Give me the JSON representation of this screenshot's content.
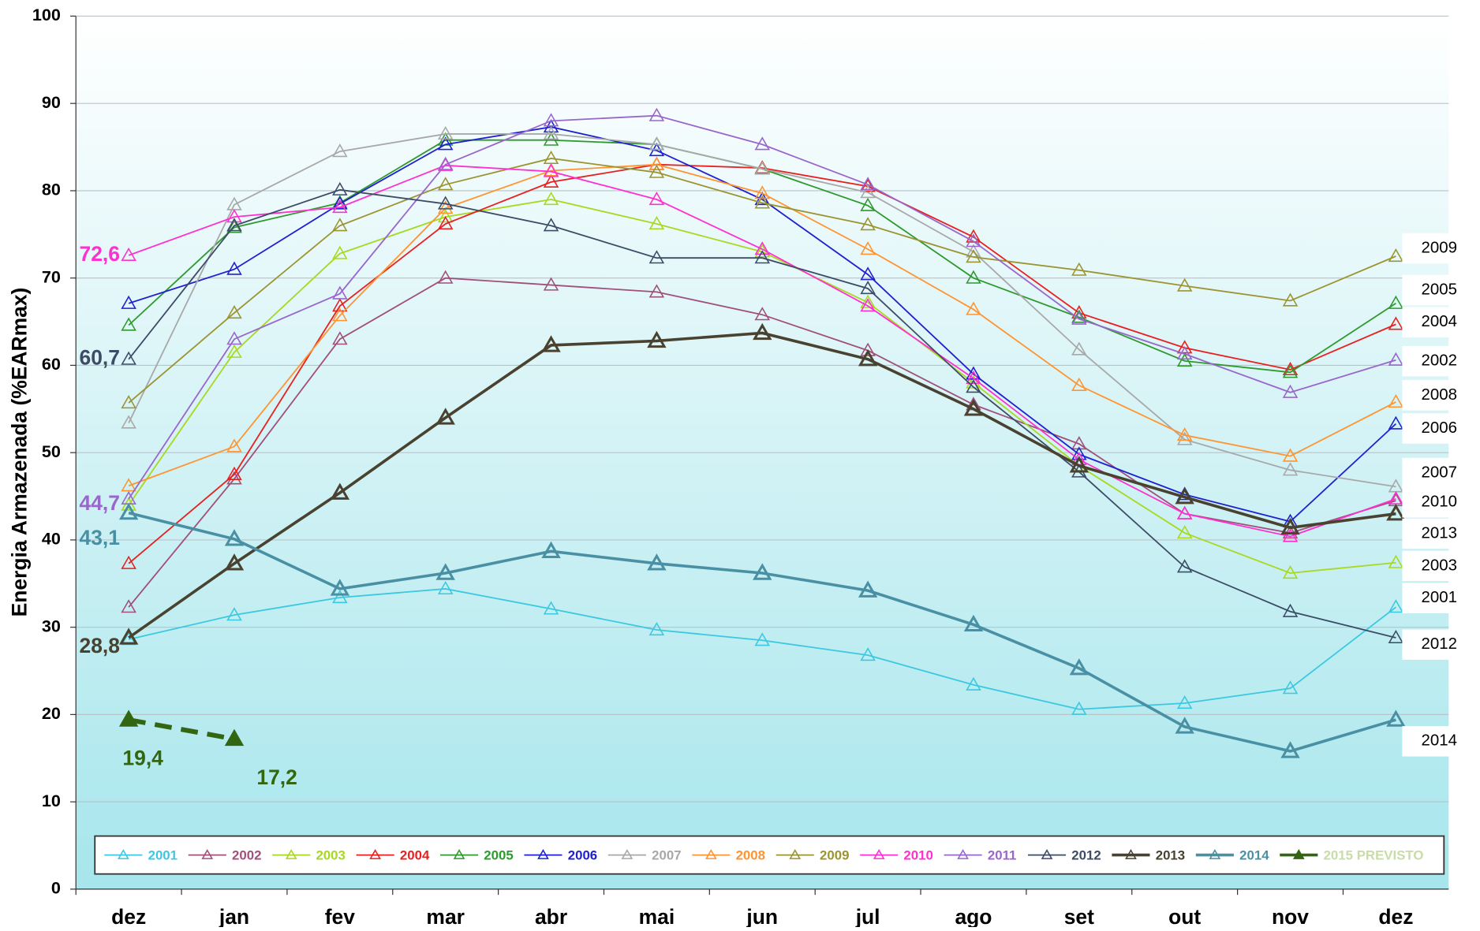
{
  "chart_data": {
    "type": "line",
    "y_label": "Energia Armazenada (%EARmax)",
    "categories": [
      "dez",
      "jan",
      "fev",
      "mar",
      "abr",
      "mai",
      "jun",
      "jul",
      "ago",
      "set",
      "out",
      "nov",
      "dez"
    ],
    "ylim": [
      0,
      100
    ],
    "yticks": [
      0,
      10,
      20,
      30,
      40,
      50,
      60,
      70,
      80,
      90,
      100
    ],
    "grid": true,
    "legend": "bottom",
    "series": [
      {
        "name": "2001",
        "color": "#3cc8e0",
        "values": [
          28.6,
          31.4,
          33.4,
          34.4,
          32.1,
          29.7,
          28.5,
          26.8,
          23.4,
          20.6,
          21.3,
          23.0,
          32.3
        ]
      },
      {
        "name": "2002",
        "color": "#a0507a",
        "values": [
          32.3,
          47.0,
          63.0,
          70.0,
          69.2,
          68.4,
          65.8,
          61.7,
          55.5,
          51.0,
          43.0,
          40.8,
          44.5
        ]
      },
      {
        "name": "2003",
        "color": "#a8d820",
        "values": [
          44.0,
          61.5,
          72.8,
          77.0,
          79.0,
          76.2,
          73.0,
          67.2,
          58.0,
          48.5,
          40.8,
          36.2,
          37.4
        ]
      },
      {
        "name": "2004",
        "color": "#e82020",
        "values": [
          37.3,
          47.5,
          66.8,
          76.2,
          81.0,
          83.0,
          82.6,
          80.5,
          74.7,
          66.0,
          62.0,
          59.5,
          64.7
        ]
      },
      {
        "name": "2005",
        "color": "#2e9a2e",
        "values": [
          64.6,
          75.8,
          78.6,
          85.8,
          85.8,
          85.3,
          82.5,
          78.3,
          70.0,
          65.5,
          60.5,
          59.2,
          67.1
        ]
      },
      {
        "name": "2006",
        "color": "#2020d0",
        "values": [
          67.1,
          71.0,
          78.5,
          85.3,
          87.3,
          84.6,
          79.0,
          70.4,
          59.0,
          49.8,
          45.2,
          42.1,
          53.3
        ]
      },
      {
        "name": "2007",
        "color": "#a8a8a8",
        "values": [
          53.4,
          78.4,
          84.5,
          86.5,
          86.5,
          85.3,
          82.5,
          79.8,
          73.0,
          61.8,
          51.5,
          48.0,
          46.1
        ]
      },
      {
        "name": "2008",
        "color": "#ff9430",
        "values": [
          46.2,
          50.7,
          65.7,
          78.0,
          82.3,
          83.0,
          79.7,
          73.3,
          66.4,
          57.7,
          52.0,
          49.6,
          55.8
        ]
      },
      {
        "name": "2009",
        "color": "#9c9430",
        "values": [
          55.7,
          66.0,
          76.0,
          80.7,
          83.7,
          82.1,
          78.6,
          76.1,
          72.4,
          70.9,
          69.1,
          67.4,
          72.5
        ]
      },
      {
        "name": "2010",
        "color": "#ff30d0",
        "values": [
          72.6,
          77.0,
          78.1,
          82.9,
          82.2,
          79.0,
          73.3,
          66.8,
          58.5,
          49.2,
          43.0,
          40.4,
          44.7
        ],
        "value_labels": [
          "72,6",
          null,
          null,
          null,
          null,
          null,
          null,
          null,
          null,
          null,
          null,
          null,
          null
        ]
      },
      {
        "name": "2011",
        "color": "#9966cc",
        "values": [
          44.7,
          63.0,
          68.2,
          83.0,
          88.0,
          88.6,
          85.3,
          80.7,
          74.2,
          65.3,
          61.3,
          56.9,
          60.6
        ],
        "value_labels": [
          "44,7",
          null,
          null,
          null,
          null,
          null,
          null,
          null,
          null,
          null,
          null,
          null,
          null
        ]
      },
      {
        "name": "2012",
        "color": "#3c4c66",
        "values": [
          60.7,
          76.0,
          80.1,
          78.5,
          76.0,
          72.3,
          72.3,
          68.8,
          57.5,
          47.8,
          36.9,
          31.8,
          28.8
        ],
        "value_labels": [
          "60,7",
          null,
          null,
          null,
          null,
          null,
          null,
          null,
          null,
          null,
          null,
          null,
          null
        ]
      },
      {
        "name": "2013",
        "color": "#4a4230",
        "bold": true,
        "values": [
          28.8,
          37.3,
          45.4,
          54.0,
          62.3,
          62.8,
          63.7,
          60.7,
          55.0,
          48.5,
          44.9,
          41.4,
          43.0
        ],
        "value_labels": [
          "28,8",
          null,
          null,
          null,
          null,
          null,
          null,
          null,
          null,
          null,
          null,
          null,
          null
        ]
      },
      {
        "name": "2014",
        "color": "#4a90a4",
        "bold": true,
        "values": [
          43.1,
          40.1,
          34.4,
          36.2,
          38.7,
          37.3,
          36.2,
          34.2,
          30.3,
          25.3,
          18.6,
          15.8,
          19.4
        ],
        "value_labels": [
          "43,1",
          null,
          null,
          null,
          null,
          null,
          null,
          null,
          null,
          null,
          null,
          null,
          null
        ]
      },
      {
        "name": "2015 PREVISTO",
        "color": "#336611",
        "bold": true,
        "dashed": true,
        "filled": true,
        "values": [
          19.4,
          17.2,
          null,
          null,
          null,
          null,
          null,
          null,
          null,
          null,
          null,
          null,
          null
        ],
        "value_labels": [
          "19,4",
          "17,2",
          null,
          null,
          null,
          null,
          null,
          null,
          null,
          null,
          null,
          null,
          null
        ]
      }
    ]
  }
}
